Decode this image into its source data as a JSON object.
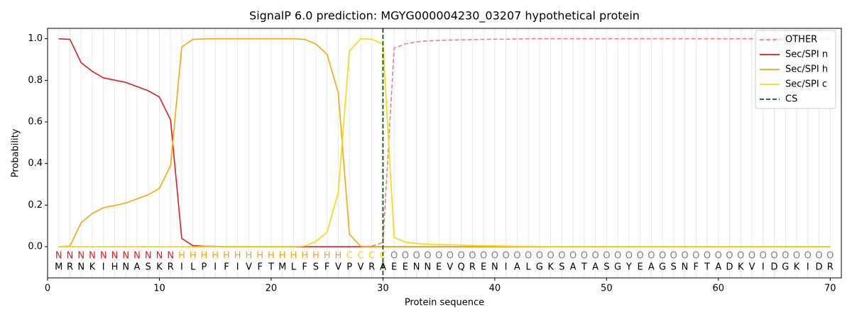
{
  "chart_data": {
    "type": "line",
    "title": "SignalP 6.0 prediction: MGYG000004230_03207 hypothetical protein",
    "xlabel": "Protein sequence",
    "ylabel": "Probability",
    "x": [
      1,
      2,
      3,
      4,
      5,
      6,
      7,
      8,
      9,
      10,
      11,
      12,
      13,
      14,
      15,
      16,
      17,
      18,
      19,
      20,
      21,
      22,
      23,
      24,
      25,
      26,
      27,
      28,
      29,
      30,
      31,
      32,
      33,
      34,
      35,
      36,
      37,
      38,
      39,
      40,
      41,
      42,
      43,
      44,
      45,
      46,
      47,
      48,
      49,
      50,
      51,
      52,
      53,
      54,
      55,
      56,
      57,
      58,
      59,
      60,
      61,
      62,
      63,
      64,
      65,
      66,
      67,
      68,
      69,
      70
    ],
    "xlim": [
      0,
      71
    ],
    "xticks": [
      0,
      10,
      20,
      30,
      40,
      50,
      60,
      70
    ],
    "ylim": [
      -0.15,
      1.05
    ],
    "yticks": [
      {
        "value": 0,
        "label": "0.0"
      },
      {
        "value": 0.2,
        "label": "0.2"
      },
      {
        "value": 0.4,
        "label": "0.4"
      },
      {
        "value": 0.6,
        "label": "0.6"
      },
      {
        "value": 0.8,
        "label": "0.8"
      },
      {
        "value": 1,
        "label": "1.0"
      }
    ],
    "residues": [
      "M",
      "R",
      "N",
      "K",
      "I",
      "H",
      "N",
      "A",
      "S",
      "K",
      "R",
      "I",
      "L",
      "P",
      "I",
      "F",
      "I",
      "V",
      "F",
      "T",
      "M",
      "L",
      "F",
      "S",
      "F",
      "V",
      "P",
      "V",
      "R",
      "A",
      "E",
      "E",
      "N",
      "N",
      "E",
      "V",
      "Q",
      "R",
      "E",
      "N",
      "I",
      "A",
      "L",
      "G",
      "K",
      "S",
      "A",
      "T",
      "A",
      "S",
      "G",
      "Y",
      "E",
      "A",
      "G",
      "S",
      "N",
      "F",
      "T",
      "A",
      "D",
      "K",
      "V",
      "I",
      "D",
      "G",
      "K",
      "I",
      "D",
      "R"
    ],
    "region_labels": [
      "N",
      "N",
      "N",
      "N",
      "N",
      "N",
      "N",
      "N",
      "N",
      "N",
      "N",
      "H",
      "H",
      "H",
      "H",
      "H",
      "H",
      "H",
      "H",
      "H",
      "H",
      "H",
      "H",
      "H",
      "H",
      "H",
      "C",
      "C",
      "C",
      "C",
      "O",
      "O",
      "O",
      "O",
      "O",
      "O",
      "O",
      "O",
      "O",
      "O",
      "O",
      "O",
      "O",
      "O",
      "O",
      "O",
      "O",
      "O",
      "O",
      "O",
      "O",
      "O",
      "O",
      "O",
      "O",
      "O",
      "O",
      "O",
      "O",
      "O",
      "O",
      "O",
      "O",
      "O",
      "O",
      "O",
      "O",
      "O",
      "O",
      "O"
    ],
    "region_colors": {
      "N": "#e41a1c",
      "H": "#ffa500",
      "C": "#ffd700",
      "O": "#808080"
    },
    "legend": "upper right",
    "residue_grid": true,
    "series": [
      {
        "name": "OTHER",
        "color": "#f08080",
        "dashed": true,
        "values": [
          0,
          0,
          0,
          0,
          0,
          0,
          0,
          0,
          0,
          0,
          0,
          0,
          0,
          0,
          0,
          0,
          0,
          0,
          0,
          0,
          0,
          0,
          0,
          0,
          0,
          0,
          0,
          0,
          0.003,
          0.02,
          0.955,
          0.975,
          0.985,
          0.99,
          0.992,
          0.994,
          0.995,
          0.996,
          0.997,
          0.998,
          0.998,
          0.999,
          1,
          1,
          1,
          1,
          1,
          1,
          1,
          1,
          1,
          1,
          1,
          1,
          1,
          1,
          1,
          1,
          1,
          1,
          1,
          1,
          1,
          1,
          1,
          1,
          1,
          1,
          1,
          1
        ]
      },
      {
        "name": "Sec/SPI n",
        "color": "#e41a1c",
        "dashed": false,
        "values": [
          1.0,
          0.997,
          0.885,
          0.843,
          0.812,
          0.801,
          0.79,
          0.77,
          0.75,
          0.72,
          0.61,
          0.04,
          0.005,
          0.002,
          0.001,
          0,
          0,
          0,
          0,
          0,
          0,
          0,
          0,
          0,
          0,
          0,
          0,
          0,
          0,
          0,
          0,
          0,
          0,
          0,
          0,
          0,
          0,
          0,
          0,
          0,
          0,
          0,
          0,
          0,
          0,
          0,
          0,
          0,
          0,
          0,
          0,
          0,
          0,
          0,
          0,
          0,
          0,
          0,
          0,
          0,
          0,
          0,
          0,
          0,
          0,
          0,
          0,
          0,
          0,
          0
        ]
      },
      {
        "name": "Sec/SPI h",
        "color": "#ffa500",
        "dashed": false,
        "values": [
          0,
          0.003,
          0.115,
          0.16,
          0.188,
          0.198,
          0.21,
          0.23,
          0.25,
          0.28,
          0.39,
          0.96,
          0.997,
          0.999,
          1,
          1,
          1,
          1,
          1,
          1,
          1,
          1,
          0.997,
          0.975,
          0.925,
          0.74,
          0.06,
          0.002,
          0,
          0,
          0,
          0,
          0,
          0,
          0,
          0,
          0,
          0,
          0,
          0,
          0,
          0,
          0,
          0,
          0,
          0,
          0,
          0,
          0,
          0,
          0,
          0,
          0,
          0,
          0,
          0,
          0,
          0,
          0,
          0,
          0,
          0,
          0,
          0,
          0,
          0,
          0,
          0,
          0,
          0
        ]
      },
      {
        "name": "Sec/SPI c",
        "color": "#ffd700",
        "dashed": false,
        "values": [
          0,
          0,
          0,
          0,
          0,
          0,
          0,
          0,
          0,
          0,
          0,
          0,
          0,
          0,
          0,
          0,
          0,
          0,
          0,
          0,
          0,
          0,
          0.003,
          0.025,
          0.07,
          0.26,
          0.94,
          1.0,
          0.998,
          0.975,
          0.045,
          0.022,
          0.015,
          0.012,
          0.01,
          0.009,
          0.008,
          0.006,
          0.005,
          0.004,
          0.003,
          0.002,
          0.002,
          0.001,
          0,
          0,
          0,
          0,
          0,
          0,
          0,
          0,
          0,
          0,
          0,
          0,
          0,
          0,
          0,
          0,
          0,
          0,
          0,
          0,
          0,
          0,
          0,
          0,
          0,
          0
        ]
      }
    ],
    "cs": {
      "name": "CS",
      "x": 30,
      "color": "#006400"
    }
  }
}
